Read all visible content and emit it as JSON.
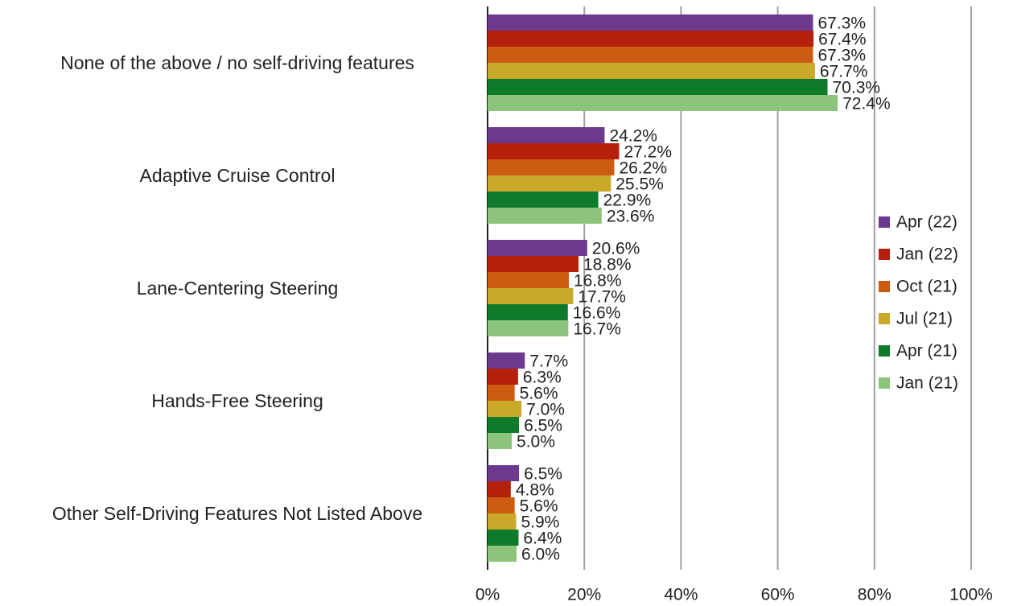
{
  "chart_data": {
    "type": "hbar",
    "categories": [
      "None of the above / no self-driving features",
      "Adaptive Cruise Control",
      "Lane-Centering Steering",
      "Hands-Free Steering",
      "Other Self-Driving Features Not Listed Above"
    ],
    "series": [
      {
        "name": "Apr (22)",
        "color": "#6b3a8f",
        "values": [
          67.3,
          24.2,
          20.6,
          7.7,
          6.5
        ],
        "value_labels": [
          "67.3%",
          "24.2%",
          "20.6%",
          "7.7%",
          "6.5%"
        ]
      },
      {
        "name": "Jan (22)",
        "color": "#b5200d",
        "values": [
          67.4,
          27.2,
          18.8,
          6.3,
          4.8
        ],
        "value_labels": [
          "67.4%",
          "27.2%",
          "18.8%",
          "6.3%",
          "4.8%"
        ]
      },
      {
        "name": "Oct (21)",
        "color": "#cc5c12",
        "values": [
          67.3,
          26.2,
          16.8,
          5.6,
          5.6
        ],
        "value_labels": [
          "67.3%",
          "26.2%",
          "16.8%",
          "5.6%",
          "5.6%"
        ]
      },
      {
        "name": "Jul (21)",
        "color": "#c9a82a",
        "values": [
          67.7,
          25.5,
          17.7,
          7.0,
          5.9
        ],
        "value_labels": [
          "67.7%",
          "25.5%",
          "17.7%",
          "7.0%",
          "5.9%"
        ]
      },
      {
        "name": "Apr (21)",
        "color": "#0f7a2a",
        "values": [
          70.3,
          22.9,
          16.6,
          6.5,
          6.4
        ],
        "value_labels": [
          "70.3%",
          "22.9%",
          "16.6%",
          "6.5%",
          "6.4%"
        ]
      },
      {
        "name": "Jan (21)",
        "color": "#8dc47c",
        "values": [
          72.4,
          23.6,
          16.7,
          5.0,
          6.0
        ],
        "value_labels": [
          "72.4%",
          "23.6%",
          "16.7%",
          "5.0%",
          "6.0%"
        ]
      }
    ],
    "xlim": [
      0,
      100
    ],
    "xticks": [
      {
        "value": 0,
        "label": "0%"
      },
      {
        "value": 20,
        "label": "20%"
      },
      {
        "value": 40,
        "label": "40%"
      },
      {
        "value": 60,
        "label": "60%"
      },
      {
        "value": 80,
        "label": "80%"
      },
      {
        "value": 100,
        "label": "100%"
      }
    ],
    "grid": true,
    "legend": "right"
  }
}
